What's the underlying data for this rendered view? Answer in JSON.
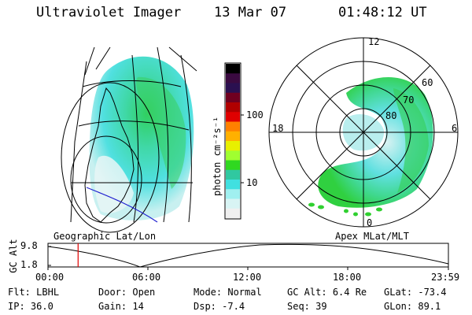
{
  "header": {
    "title": "Ultraviolet Imager",
    "date": "13 Mar 07",
    "time": "01:48:12 UT"
  },
  "left_panel": {
    "label": "Geographic Lat/Lon"
  },
  "right_panel": {
    "label": "Apex MLat/MLT",
    "mlt_labels": [
      "12",
      "18",
      "6",
      "0"
    ],
    "lat_labels": [
      "60",
      "70",
      "80"
    ]
  },
  "colorbar": {
    "unit_label": "photon cm⁻²s⁻¹",
    "ticks": [
      "100",
      "10"
    ],
    "colors": [
      "#000000",
      "#3a0a40",
      "#2a1050",
      "#700020",
      "#b00000",
      "#e00000",
      "#ff8000",
      "#ffb000",
      "#e8f000",
      "#a0ff30",
      "#30d820",
      "#30c8a0",
      "#40e0e0",
      "#a0f0f0",
      "#d8f4f4",
      "#f0f0f0"
    ]
  },
  "timeline": {
    "y_axis_label": "GC Alt",
    "y_ticks": [
      "9.8",
      "1.8"
    ],
    "x_ticks": [
      "00:00",
      "06:00",
      "12:00",
      "18:00",
      "23:59"
    ],
    "current_time_marker": "01:48:12"
  },
  "info": {
    "row1": [
      {
        "key": "Flt:",
        "value": "LBHL"
      },
      {
        "key": "Door:",
        "value": "Open"
      },
      {
        "key": "Mode:",
        "value": "Normal"
      },
      {
        "key": "GC Alt:",
        "value": "6.4 Re"
      },
      {
        "key": "GLat:",
        "value": "-73.4"
      }
    ],
    "row2": [
      {
        "key": "IP:",
        "value": "36.0"
      },
      {
        "key": "Gain:",
        "value": "14"
      },
      {
        "key": "Dsp:",
        "value": "-7.4"
      },
      {
        "key": "Seq:",
        "value": "39"
      },
      {
        "key": "GLon:",
        "value": "89.1"
      }
    ]
  }
}
